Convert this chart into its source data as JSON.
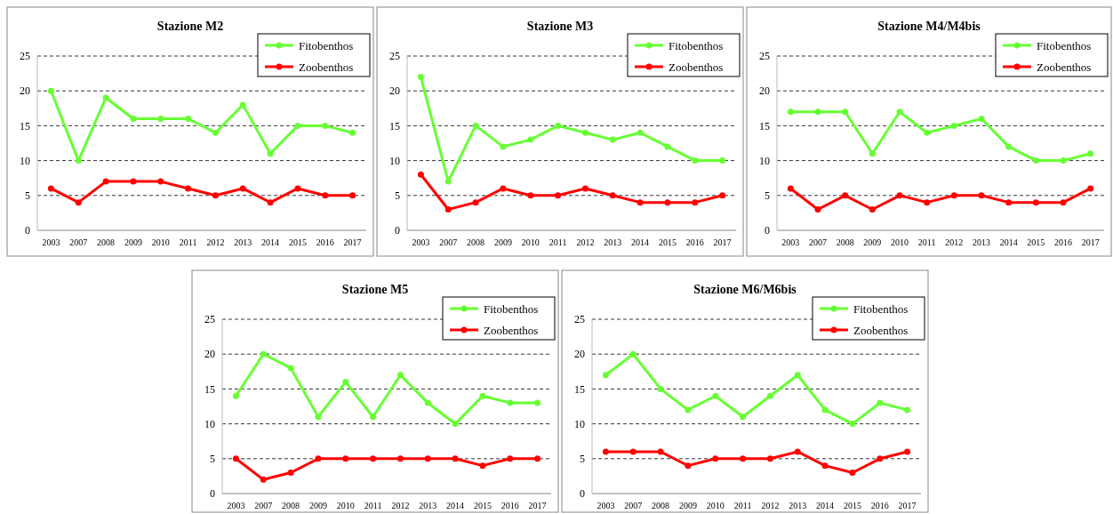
{
  "chart_data": [
    {
      "type": "line",
      "title": "Stazione M2",
      "categories": [
        "2003",
        "2007",
        "2008",
        "2009",
        "2010",
        "2011",
        "2012",
        "2013",
        "2014",
        "2015",
        "2016",
        "2017"
      ],
      "series": [
        {
          "name": "Fitobenthos",
          "color": "#66ff33",
          "values": [
            20,
            10,
            19,
            16,
            16,
            16,
            14,
            18,
            11,
            15,
            15,
            14
          ]
        },
        {
          "name": "Zoobenthos",
          "color": "#ff0000",
          "values": [
            6,
            4,
            7,
            7,
            7,
            6,
            5,
            6,
            4,
            6,
            5,
            5
          ]
        }
      ],
      "ylim": [
        0,
        25
      ],
      "yticks": [
        0,
        5,
        10,
        15,
        20,
        25
      ],
      "grid": "y",
      "legend": "top right",
      "marker": "circle"
    },
    {
      "type": "line",
      "title": "Stazione M3",
      "categories": [
        "2003",
        "2007",
        "2008",
        "2009",
        "2010",
        "2011",
        "2012",
        "2013",
        "2014",
        "2015",
        "2016",
        "2017"
      ],
      "series": [
        {
          "name": "Fitobenthos",
          "color": "#66ff33",
          "values": [
            22,
            7,
            15,
            12,
            13,
            15,
            14,
            13,
            14,
            12,
            10,
            10
          ]
        },
        {
          "name": "Zoobenthos",
          "color": "#ff0000",
          "values": [
            8,
            3,
            4,
            6,
            5,
            5,
            6,
            5,
            4,
            4,
            4,
            5
          ]
        }
      ],
      "ylim": [
        0,
        25
      ],
      "yticks": [
        0,
        5,
        10,
        15,
        20,
        25
      ],
      "grid": "y",
      "legend": "top right",
      "marker": "circle"
    },
    {
      "type": "line",
      "title": "Stazione M4/M4bis",
      "categories": [
        "2003",
        "2007",
        "2008",
        "2009",
        "2010",
        "2011",
        "2012",
        "2013",
        "2014",
        "2015",
        "2016",
        "2017"
      ],
      "series": [
        {
          "name": "Fitobenthos",
          "color": "#66ff33",
          "values": [
            17,
            17,
            17,
            11,
            17,
            14,
            15,
            16,
            12,
            10,
            10,
            11
          ]
        },
        {
          "name": "Zoobenthos",
          "color": "#ff0000",
          "values": [
            6,
            3,
            5,
            3,
            5,
            4,
            5,
            5,
            4,
            4,
            4,
            6
          ]
        }
      ],
      "ylim": [
        0,
        25
      ],
      "yticks": [
        0,
        5,
        10,
        15,
        20,
        25
      ],
      "grid": "y",
      "legend": "top right",
      "marker": "circle"
    },
    {
      "type": "line",
      "title": "Stazione M5",
      "categories": [
        "2003",
        "2007",
        "2008",
        "2009",
        "2010",
        "2011",
        "2012",
        "2013",
        "2014",
        "2015",
        "2016",
        "2017"
      ],
      "series": [
        {
          "name": "Fitobenthos",
          "color": "#66ff33",
          "values": [
            14,
            20,
            18,
            11,
            16,
            11,
            17,
            13,
            10,
            14,
            13,
            13
          ]
        },
        {
          "name": "Zoobenthos",
          "color": "#ff0000",
          "values": [
            5,
            2,
            3,
            5,
            5,
            5,
            5,
            5,
            5,
            4,
            5,
            5
          ]
        }
      ],
      "ylim": [
        0,
        25
      ],
      "yticks": [
        0,
        5,
        10,
        15,
        20,
        25
      ],
      "grid": "y",
      "legend": "top right",
      "marker": "circle"
    },
    {
      "type": "line",
      "title": "Stazione M6/M6bis",
      "categories": [
        "2003",
        "2007",
        "2008",
        "2009",
        "2010",
        "2011",
        "2012",
        "2013",
        "2014",
        "2015",
        "2016",
        "2017"
      ],
      "series": [
        {
          "name": "Fitobenthos",
          "color": "#66ff33",
          "values": [
            17,
            20,
            15,
            12,
            14,
            11,
            14,
            17,
            12,
            10,
            13,
            12
          ]
        },
        {
          "name": "Zoobenthos",
          "color": "#ff0000",
          "values": [
            6,
            6,
            6,
            4,
            5,
            5,
            5,
            6,
            4,
            3,
            5,
            6
          ]
        }
      ],
      "ylim": [
        0,
        25
      ],
      "yticks": [
        0,
        5,
        10,
        15,
        20,
        25
      ],
      "grid": "y",
      "legend": "top right",
      "marker": "circle"
    }
  ]
}
